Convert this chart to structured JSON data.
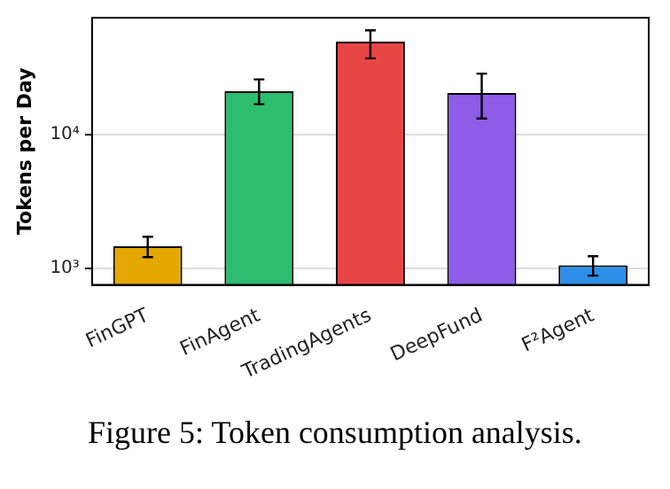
{
  "chart_data": {
    "type": "bar",
    "ylabel": "Tokens per Day",
    "categories": [
      "FinGPT",
      "FinAgent",
      "TradingAgents",
      "DeepFund",
      "F²Agent"
    ],
    "values": [
      1460,
      21100,
      49700,
      20500,
      1050
    ],
    "colors": [
      "#e5a800",
      "#2dbd6e",
      "#e84545",
      "#8e5ce6",
      "#2e8fe8"
    ],
    "errors": [
      [
        1210,
        1720
      ],
      [
        16900,
        25900
      ],
      [
        37200,
        60400
      ],
      [
        13200,
        28600
      ],
      [
        880,
        1230
      ]
    ],
    "log": "y",
    "ylim": [
      750,
      75000
    ],
    "yticks": [
      {
        "value": 1000,
        "label": "10³"
      },
      {
        "value": 10000,
        "label": "10⁴"
      }
    ],
    "grid": "y",
    "legend": false,
    "annotations": [
      "Figure 5: Token consumption analysis."
    ]
  }
}
